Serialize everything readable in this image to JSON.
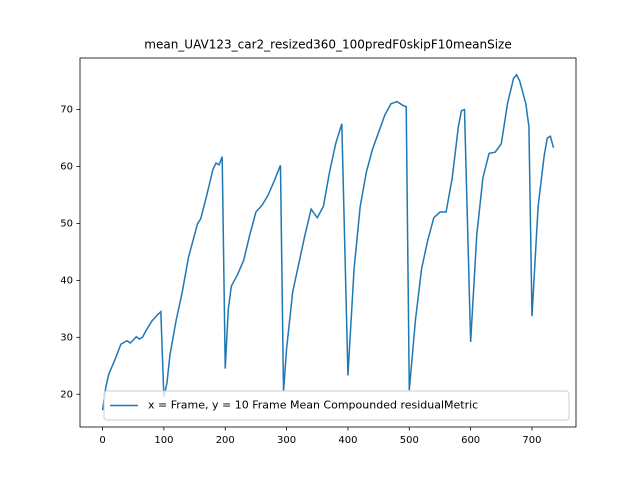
{
  "chart_data": {
    "type": "line",
    "title": "mean_UAV123_car2_resized360_100predF0skipF10meanSize",
    "x": [
      0,
      5,
      10,
      20,
      30,
      40,
      45,
      50,
      55,
      60,
      65,
      70,
      80,
      90,
      95,
      100,
      105,
      110,
      120,
      130,
      140,
      150,
      155,
      160,
      170,
      180,
      185,
      190,
      195,
      200,
      205,
      210,
      220,
      230,
      240,
      250,
      260,
      270,
      280,
      290,
      295,
      300,
      310,
      320,
      330,
      340,
      350,
      360,
      370,
      380,
      390,
      400,
      410,
      420,
      430,
      440,
      450,
      460,
      470,
      480,
      490,
      495,
      500,
      510,
      520,
      530,
      540,
      550,
      560,
      570,
      580,
      585,
      590,
      600,
      610,
      620,
      630,
      640,
      650,
      660,
      670,
      675,
      680,
      690,
      695,
      700,
      710,
      720,
      725,
      730,
      735
    ],
    "series": [
      {
        "name": "x = Frame, y = 10 Frame Mean Compounded residualMetric",
        "color": "#1f77b4",
        "values": [
          17.2,
          21,
          23.5,
          26,
          28.8,
          29.4,
          29,
          29.5,
          30.1,
          29.7,
          30,
          31,
          32.8,
          34,
          34.5,
          19.5,
          22,
          27,
          33,
          38,
          44,
          48,
          50,
          50.8,
          55,
          59.5,
          60.6,
          60.3,
          61.7,
          24.5,
          35,
          39,
          41,
          43.5,
          48,
          52,
          53.2,
          55,
          57.5,
          60.2,
          20.5,
          28,
          38,
          43,
          48,
          52.5,
          51,
          53,
          59,
          64,
          67.5,
          23.3,
          42,
          53,
          59,
          63,
          66,
          69,
          71,
          71.4,
          70.7,
          70.5,
          20.7,
          33,
          42,
          47,
          51,
          52,
          52,
          58,
          67,
          69.8,
          70,
          29.2,
          48,
          58,
          62.3,
          62.5,
          64,
          71,
          75.5,
          76.1,
          75,
          71,
          67,
          33.7,
          53,
          62,
          65,
          65.3,
          63.3
        ]
      }
    ],
    "xlim": [
      -36.75,
      771.75
    ],
    "xticks": [
      0,
      100,
      200,
      300,
      400,
      500,
      600,
      700
    ],
    "ylim": [
      14.25,
      79.05
    ],
    "yticks": [
      20,
      30,
      40,
      50,
      60,
      70
    ],
    "legend": "lower left"
  }
}
